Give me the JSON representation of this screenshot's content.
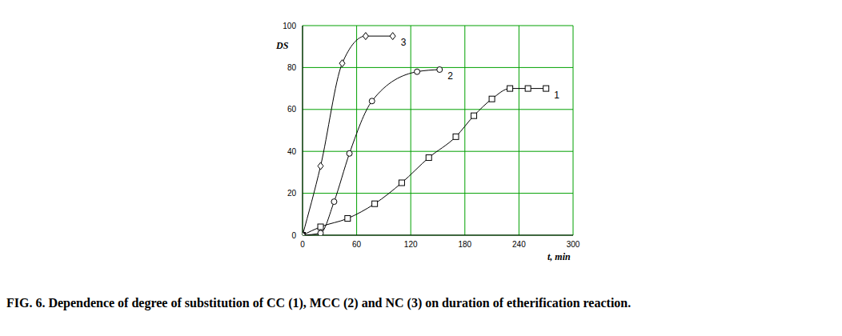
{
  "chart_data": {
    "type": "line",
    "title": "FIG. 6. Dependence of degree of substitution of CC (1), MCC (2) and NC (3) on duration of etherification reaction.",
    "x_label": "t, min",
    "y_label": "DS",
    "xlim": [
      0,
      300
    ],
    "xticks": [
      0,
      60,
      120,
      180,
      240,
      300
    ],
    "ylim": [
      0,
      100
    ],
    "yticks": [
      0,
      20,
      40,
      60,
      80,
      100
    ],
    "grid": true,
    "series": [
      {
        "name": "1",
        "color": "#000000",
        "marker": "square",
        "x": [
          0,
          20,
          50,
          80,
          110,
          140,
          170,
          190,
          210,
          230,
          250,
          270
        ],
        "values": [
          0,
          4,
          8,
          15,
          25,
          37,
          47,
          57,
          65,
          70,
          70,
          70
        ]
      },
      {
        "name": "2",
        "color": "#000000",
        "marker": "circle",
        "x": [
          0,
          20,
          35,
          52,
          77,
          127,
          152
        ],
        "values": [
          0,
          1,
          16,
          39,
          64,
          78,
          79
        ]
      },
      {
        "name": "3",
        "color": "#000000",
        "marker": "diamond",
        "x": [
          0,
          20,
          44,
          70,
          100
        ],
        "values": [
          0,
          33,
          82,
          95,
          95
        ]
      }
    ]
  }
}
